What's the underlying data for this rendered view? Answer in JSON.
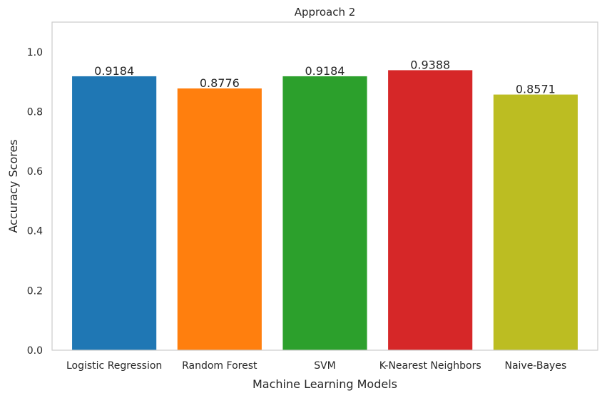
{
  "chart_data": {
    "type": "bar",
    "title": "Approach 2",
    "xlabel": "Machine Learning Models",
    "ylabel": "Accuracy Scores",
    "categories": [
      "Logistic Regression",
      "Random Forest",
      "SVM",
      "K-Nearest Neighbors",
      "Naive-Bayes"
    ],
    "values": [
      0.9184,
      0.8776,
      0.9184,
      0.9388,
      0.8571
    ],
    "data_labels": [
      "0.9184",
      "0.8776",
      "0.9184",
      "0.9388",
      "0.8571"
    ],
    "colors": [
      "#1f77b4",
      "#ff7f0e",
      "#2ca02c",
      "#d62728",
      "#bcbd22"
    ],
    "ylim": [
      0,
      1.1
    ],
    "yticks": [
      0.0,
      0.2,
      0.4,
      0.6,
      0.8,
      1.0
    ],
    "ytick_labels": [
      "0.0",
      "0.2",
      "0.4",
      "0.6",
      "0.8",
      "1.0"
    ],
    "grid": false,
    "legend": "none"
  }
}
